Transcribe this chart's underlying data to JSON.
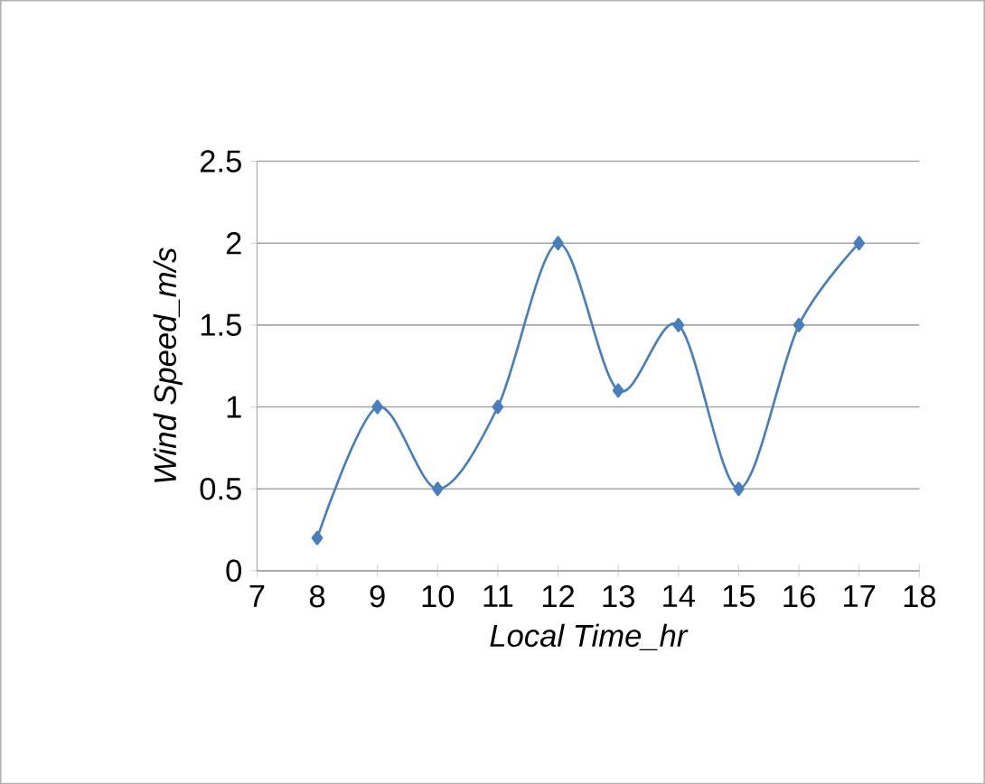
{
  "chart_data": {
    "type": "line",
    "xlabel": "Local Time_hr",
    "ylabel": "Wind Speed_m/s",
    "x": [
      8,
      9,
      10,
      11,
      12,
      13,
      14,
      15,
      16,
      17
    ],
    "series": [
      {
        "color": "#4a7ebb",
        "values": [
          0.2,
          1,
          0.5,
          1,
          2,
          1.1,
          1.5,
          0.5,
          1.5,
          2
        ]
      }
    ],
    "xlim": [
      7,
      18
    ],
    "xticks": [
      7,
      8,
      9,
      10,
      11,
      12,
      13,
      14,
      15,
      16,
      17,
      18
    ],
    "ylim": [
      0,
      2.5
    ],
    "yticks": [
      0,
      0.5,
      1,
      1.5,
      2,
      2.5
    ],
    "grid": "y",
    "marker": "diamond",
    "line_style": "solid"
  }
}
